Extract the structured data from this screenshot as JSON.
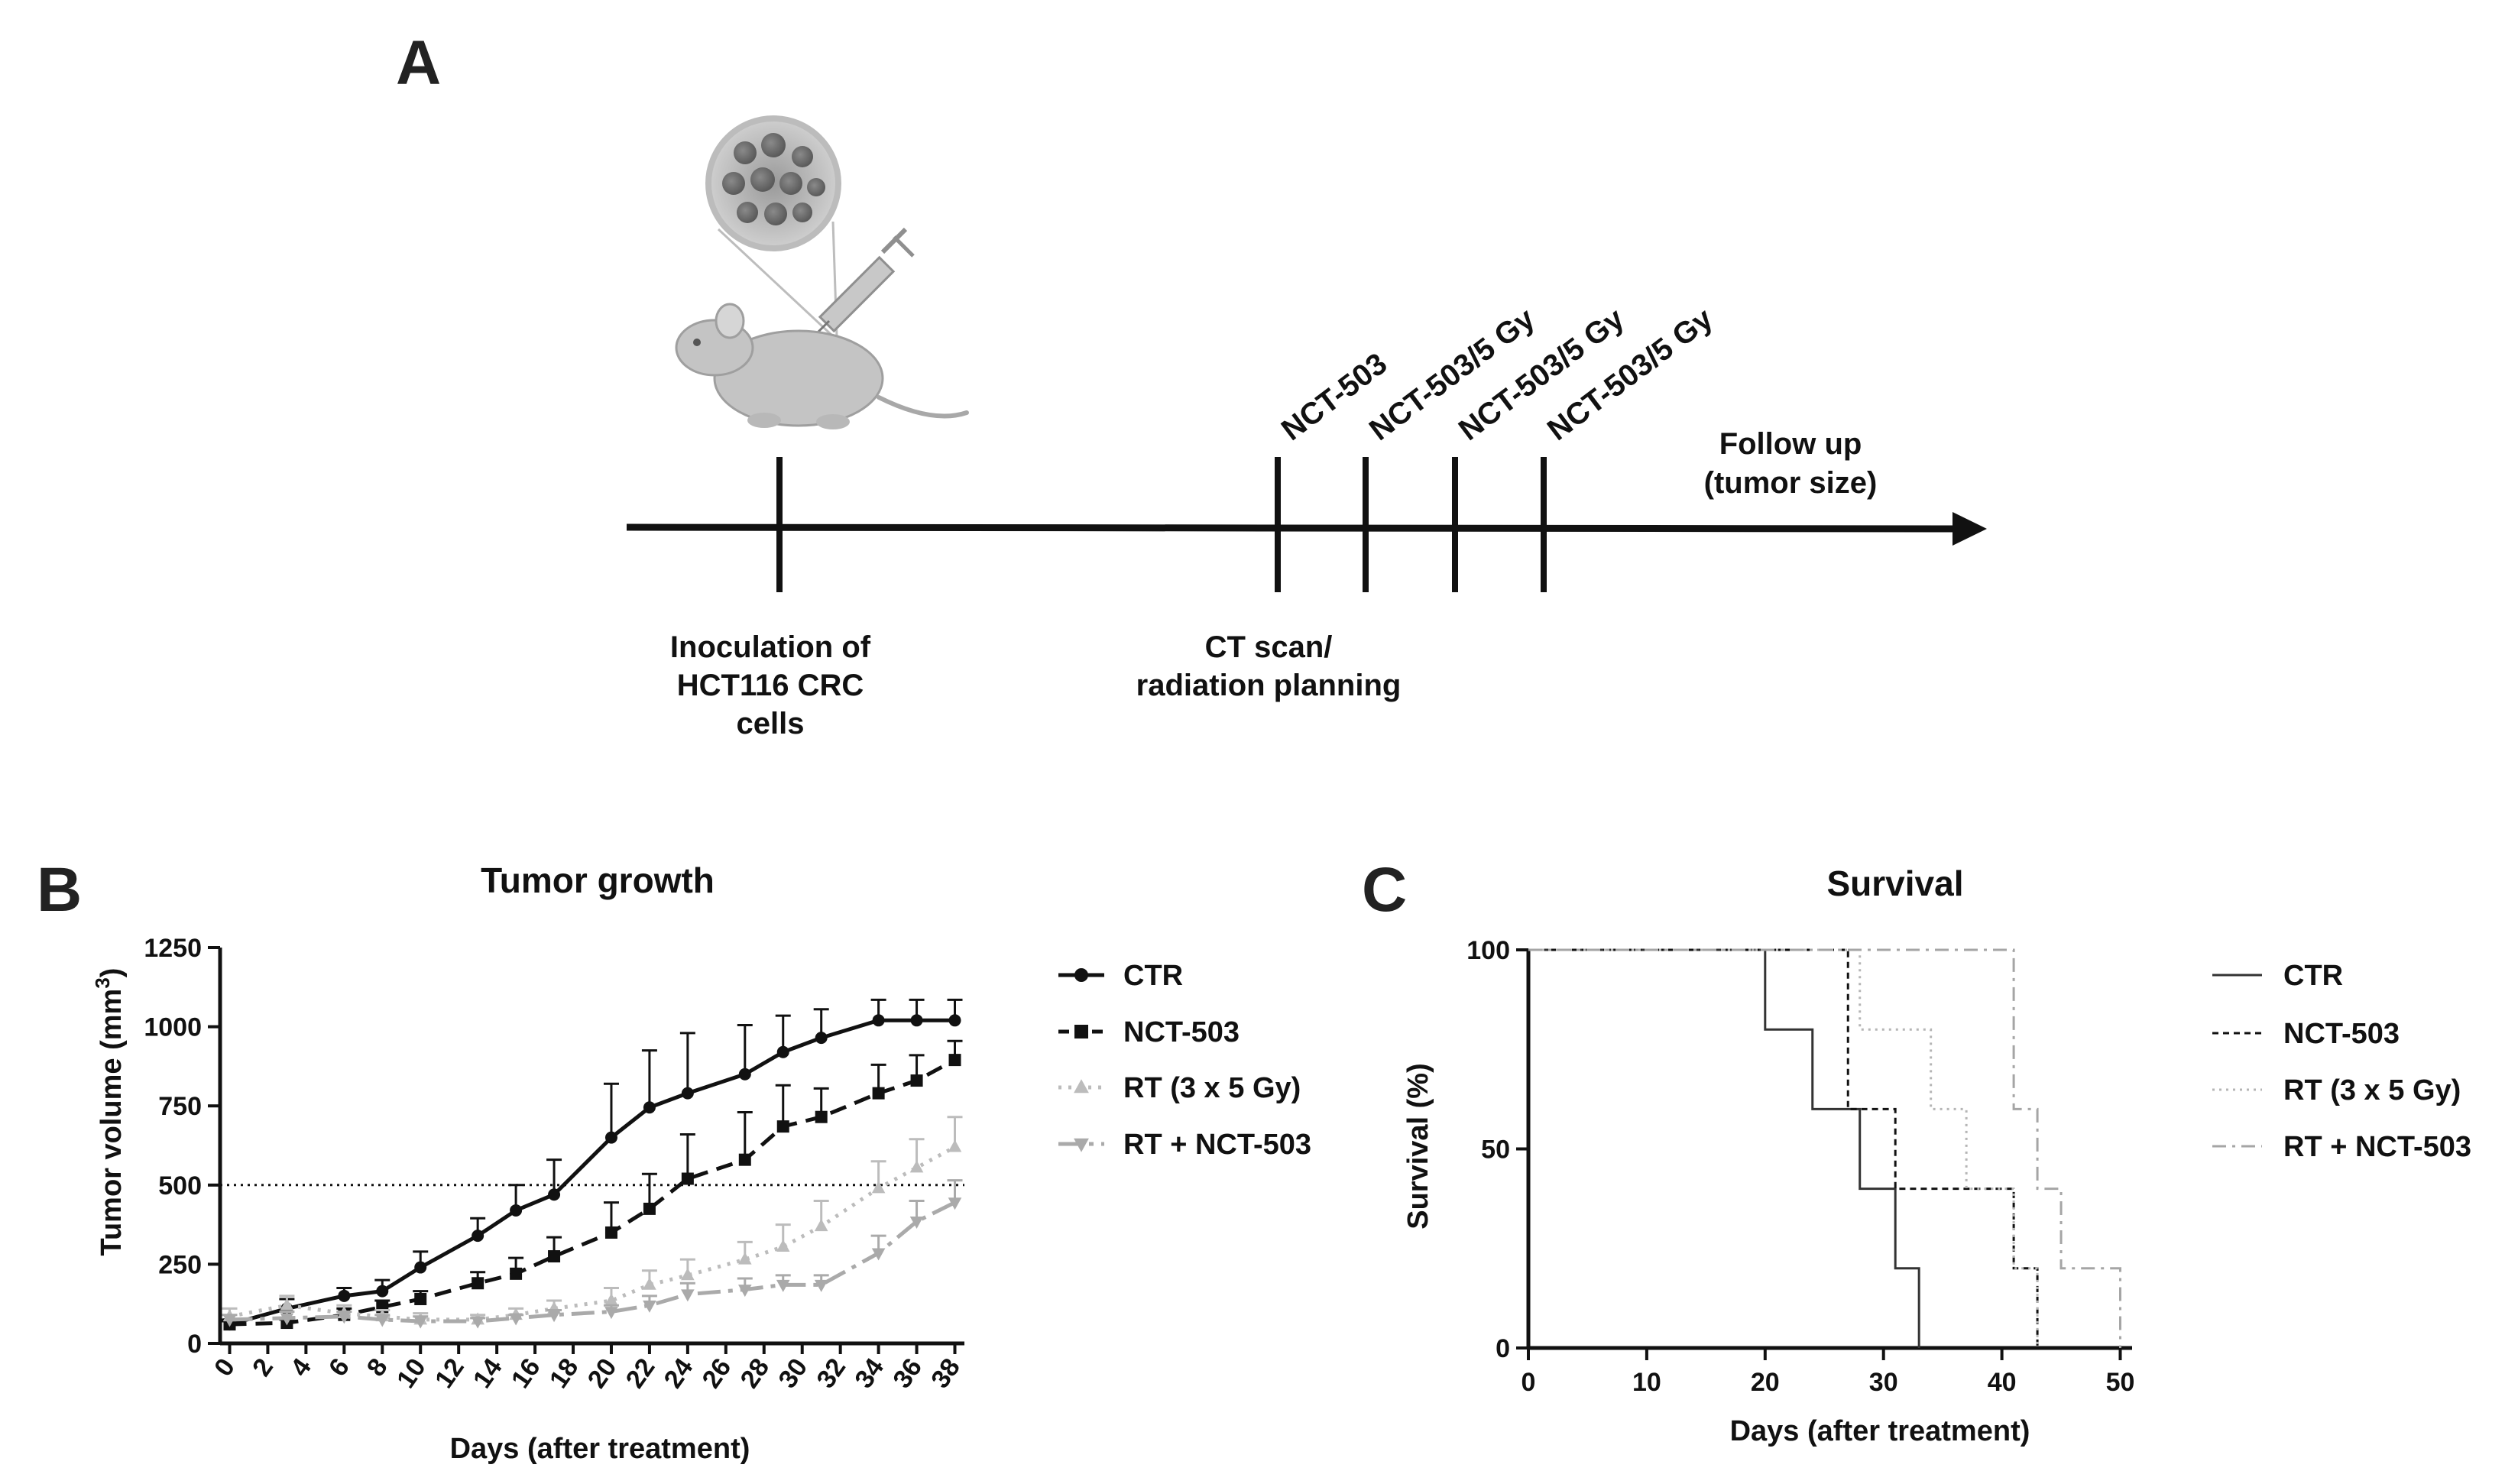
{
  "panel_labels": {
    "a": "A",
    "b": "B",
    "c": "C"
  },
  "timeline": {
    "events_top": [
      "NCT-503",
      "NCT-503/5 Gy",
      "NCT-503/5 Gy",
      "NCT-503/5 Gy"
    ],
    "inoculation": [
      "Inoculation of",
      "HCT116 CRC",
      "cells"
    ],
    "ct_scan": [
      "CT scan/",
      "radiation planning"
    ],
    "follow_up": [
      "Follow up",
      "(tumor size)"
    ]
  },
  "chart_data": [
    {
      "type": "line",
      "title": "Tumor growth",
      "xlabel": "Days (after treatment)",
      "ylabel_main": "Tumor volume (mm",
      "ylabel_sup": "3",
      "ylabel_close": ")",
      "ylim": [
        0,
        1250
      ],
      "yticks": [
        0,
        250,
        500,
        750,
        1000,
        1250
      ],
      "xlim": [
        -0.5,
        38.5
      ],
      "xticks": [
        0,
        2,
        4,
        6,
        8,
        10,
        12,
        14,
        16,
        18,
        20,
        22,
        24,
        26,
        28,
        30,
        32,
        34,
        36,
        38
      ],
      "reference_line": 500,
      "legend": "right",
      "series": [
        {
          "name": "CTR",
          "color": "#111111",
          "dash": "",
          "marker": "circle",
          "x": [
            0,
            3,
            6,
            8,
            10,
            13,
            15,
            17,
            20,
            22,
            24,
            27,
            29,
            31,
            34,
            36,
            38
          ],
          "y": [
            60,
            110,
            150,
            165,
            240,
            340,
            420,
            470,
            650,
            745,
            790,
            850,
            920,
            965,
            1020,
            1020,
            1020
          ],
          "err": [
            15,
            30,
            25,
            35,
            50,
            55,
            80,
            110,
            170,
            180,
            190,
            155,
            115,
            90,
            65,
            65,
            65
          ]
        },
        {
          "name": "NCT-503",
          "color": "#111111",
          "dash": "22,12",
          "marker": "square",
          "x": [
            0,
            3,
            6,
            8,
            10,
            13,
            15,
            17,
            20,
            22,
            24,
            27,
            29,
            31,
            34,
            36,
            38
          ],
          "y": [
            60,
            65,
            90,
            115,
            140,
            190,
            220,
            275,
            350,
            425,
            520,
            580,
            685,
            715,
            790,
            830,
            895
          ],
          "err": [
            10,
            10,
            20,
            20,
            25,
            35,
            50,
            60,
            95,
            110,
            140,
            150,
            130,
            90,
            90,
            80,
            60
          ]
        },
        {
          "name": "RT (3 x 5 Gy)",
          "color": "#bcbcbc",
          "dash": "4,9",
          "marker": "triangle-up",
          "x": [
            0,
            3,
            6,
            8,
            10,
            13,
            15,
            17,
            20,
            22,
            24,
            27,
            29,
            31,
            34,
            36,
            38
          ],
          "y": [
            85,
            120,
            95,
            85,
            75,
            75,
            90,
            110,
            135,
            185,
            215,
            265,
            305,
            370,
            490,
            555,
            620
          ],
          "err": [
            25,
            30,
            25,
            20,
            20,
            15,
            20,
            25,
            40,
            45,
            50,
            55,
            70,
            80,
            85,
            90,
            95
          ]
        },
        {
          "name": "RT + NCT-503",
          "color": "#aaaaaa",
          "dash": "30,10,6,10",
          "marker": "triangle-down",
          "x": [
            0,
            3,
            6,
            8,
            10,
            13,
            15,
            17,
            20,
            22,
            24,
            27,
            29,
            31,
            34,
            36,
            38
          ],
          "y": [
            75,
            80,
            85,
            75,
            70,
            70,
            80,
            90,
            100,
            120,
            155,
            170,
            185,
            185,
            285,
            385,
            445
          ],
          "err": [
            15,
            20,
            15,
            15,
            15,
            10,
            10,
            15,
            20,
            30,
            35,
            35,
            30,
            30,
            55,
            65,
            70
          ]
        }
      ]
    },
    {
      "type": "line",
      "title": "Survival",
      "xlabel": "Days (after treatment)",
      "ylabel": "Survival (%)",
      "ylim": [
        0,
        100
      ],
      "yticks": [
        0,
        50,
        100
      ],
      "xlim": [
        0,
        51
      ],
      "xticks": [
        0,
        10,
        20,
        30,
        40,
        50
      ],
      "step": true,
      "legend": "right",
      "series": [
        {
          "name": "CTR",
          "color": "#333333",
          "dash": "",
          "x": [
            0,
            20,
            24,
            28,
            31,
            33
          ],
          "y": [
            100,
            80,
            60,
            40,
            20,
            0
          ]
        },
        {
          "name": "NCT-503",
          "color": "#111111",
          "dash": "8,6",
          "x": [
            0,
            27,
            31,
            41,
            43
          ],
          "y": [
            100,
            60,
            40,
            20,
            0
          ]
        },
        {
          "name": "RT (3 x 5 Gy)",
          "color": "#b5b5b5",
          "dash": "3,6",
          "x": [
            0,
            28,
            34,
            37,
            41,
            43
          ],
          "y": [
            100,
            80,
            60,
            40,
            20,
            0
          ]
        },
        {
          "name": "RT + NCT-503",
          "color": "#a5a5a5",
          "dash": "18,8,4,8",
          "x": [
            0,
            41,
            43,
            44,
            45,
            50
          ],
          "y": [
            100,
            60,
            40,
            40,
            20,
            0
          ]
        }
      ]
    }
  ]
}
